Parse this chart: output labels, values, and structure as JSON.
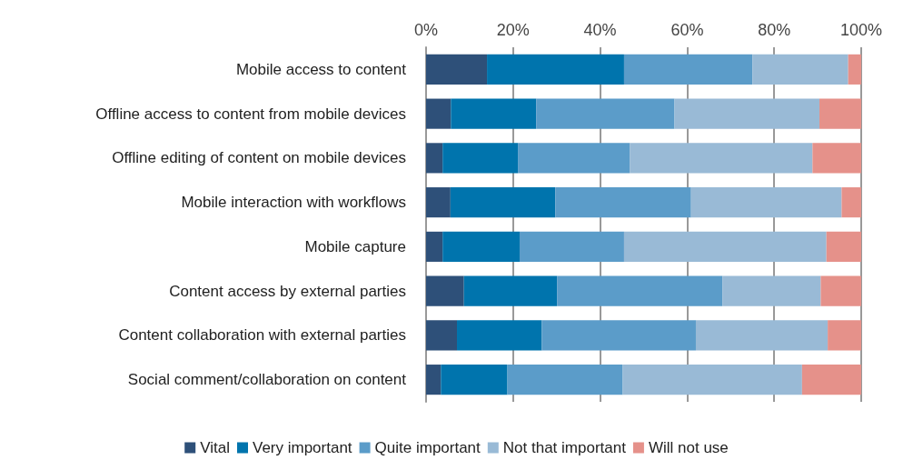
{
  "chart_data": {
    "type": "bar",
    "orientation": "horizontal",
    "stacked": true,
    "categories": [
      "Mobile access to content",
      "Offline access to content from mobile devices",
      "Offline editing of content on mobile devices",
      "Mobile interaction with workflows",
      "Mobile capture",
      "Content access by external parties",
      "Content collaboration with external parties",
      "Social comment/collaboration on content"
    ],
    "series": [
      {
        "name": "Vital",
        "color": "#2e5079",
        "values": [
          14,
          5.7,
          3.8,
          5.6,
          3.8,
          8.7,
          7.1,
          3.4
        ]
      },
      {
        "name": "Very important",
        "color": "#0074ad",
        "values": [
          31.5,
          19.6,
          17.3,
          24.1,
          17.7,
          21.4,
          19.5,
          15.3
        ]
      },
      {
        "name": "Quite important",
        "color": "#5b9cc9",
        "values": [
          29.5,
          31.8,
          25.7,
          31.2,
          24,
          38,
          35.4,
          26.5
        ]
      },
      {
        "name": "Not that important",
        "color": "#99bad6",
        "values": [
          22,
          33.3,
          42,
          34.6,
          46.5,
          22.6,
          30.3,
          41.2
        ]
      },
      {
        "name": "Will not use",
        "color": "#e5918a",
        "values": [
          3,
          9.6,
          11.2,
          4.5,
          8,
          9.3,
          7.7,
          13.6
        ]
      }
    ],
    "xlim": [
      0,
      100
    ],
    "xticks": [
      {
        "value": 0,
        "label": "0%"
      },
      {
        "value": 20,
        "label": "20%"
      },
      {
        "value": 40,
        "label": "40%"
      },
      {
        "value": 60,
        "label": "60%"
      },
      {
        "value": 80,
        "label": "80%"
      },
      {
        "value": 100,
        "label": "100%"
      }
    ],
    "grid": "x",
    "legend": "bottom"
  }
}
